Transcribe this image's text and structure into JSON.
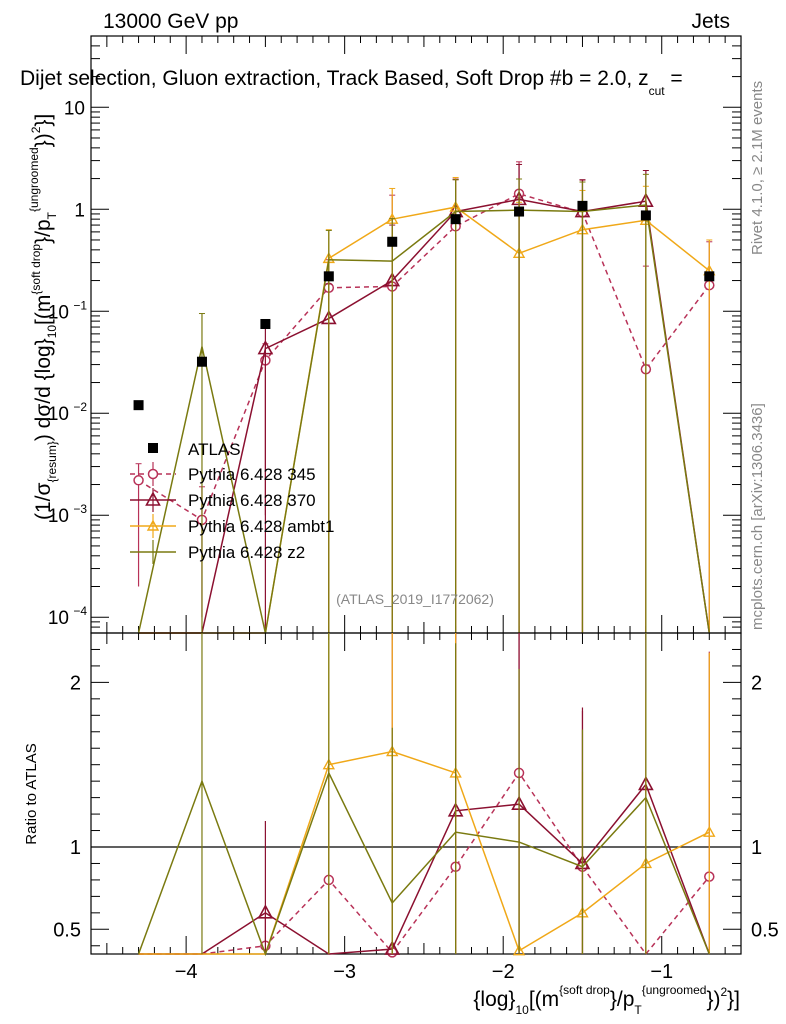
{
  "header": {
    "energy": "13000 GeV pp",
    "category": "Jets",
    "title": "Dijet selection, Gluon extraction, Track Based, Soft Drop #b = 2.0, z",
    "title_sub": "cut",
    "title_tail": " ="
  },
  "side_labels": {
    "rivet": "Rivet 4.1.0, ≥ 2.1M events",
    "mcplots": "mcplots.cern.ch [arXiv:1306.3436]"
  },
  "watermark": "(ATLAS_2019_I1772062)",
  "ylabel_main": {
    "p1": "(1/σ",
    "p1_sub": "{resum}",
    "p2": ") dσ/d {log}",
    "p2_sub": "10",
    "p3": "[(m",
    "p3_sup": "{soft drop",
    "p4": "}/p",
    "p4_sub": "T",
    "p4_sup": "{ungroomed",
    "p5": "})",
    "p5_sup": "2",
    "p6": "}]"
  },
  "ylabel_ratio": "Ratio to ATLAS",
  "xlabel": {
    "p1": "{log}",
    "p1_sub": "10",
    "p2": "[(m",
    "p2_sup": "{soft drop",
    "p3": "}/p",
    "p3_sub": "T",
    "p3_sup": "{ungroomed",
    "p4": "})",
    "p4_sup": "2",
    "p5": "}]"
  },
  "chart_data": {
    "type": "line",
    "x_range": [
      -4.6,
      -0.5
    ],
    "x_ticks": [
      "−4",
      "−3",
      "−2",
      "−1"
    ],
    "x_tick_values": [
      -4,
      -3,
      -2,
      -1
    ],
    "main": {
      "y_scale": "log",
      "ylim": [
        7e-05,
        50
      ],
      "y_ticks": [
        {
          "value": 0.0001,
          "base": "10",
          "exp": "−4"
        },
        {
          "value": 0.001,
          "base": "10",
          "exp": "−3"
        },
        {
          "value": 0.01,
          "base": "10",
          "exp": "−2"
        },
        {
          "value": 0.1,
          "base": "10",
          "exp": "−1"
        },
        {
          "value": 1,
          "base": "1",
          "exp": ""
        },
        {
          "value": 10,
          "base": "10",
          "exp": ""
        }
      ]
    },
    "ratio": {
      "ylim": [
        0.35,
        2.3
      ],
      "y_ticks": [
        "0.5",
        "1",
        "2"
      ],
      "y_tick_values": [
        0.5,
        1,
        2
      ],
      "reference": 1
    },
    "x": [
      -4.3,
      -3.9,
      -3.5,
      -3.1,
      -2.7,
      -2.3,
      -1.9,
      -1.5,
      -1.1,
      -0.7
    ],
    "data": {
      "name": "ATLAS",
      "values": [
        0.012,
        0.032,
        0.075,
        0.22,
        0.48,
        0.8,
        0.95,
        1.08,
        0.87,
        0.22
      ]
    },
    "series": [
      {
        "name": "Pythia 6.428 345",
        "color": "#b83258",
        "style": "dashed",
        "marker": "circle",
        "values": [
          0.0022,
          0.0009,
          0.033,
          0.17,
          0.175,
          0.68,
          1.42,
          0.93,
          0.027,
          0.18
        ],
        "err_hi": [
          0.001,
          0.001,
          0.015,
          0.15,
          1.2,
          1.3,
          1.5,
          1.0,
          0.25,
          0.3
        ],
        "err_lo": [
          0.002,
          0.0008,
          0.032,
          0.17,
          0.175,
          0.68,
          1.42,
          0.93,
          0.027,
          0.18
        ],
        "ratio": [
          0.18,
          0.03,
          0.4,
          0.8,
          0.36,
          0.88,
          1.45,
          0.88,
          0.03,
          0.82
        ]
      },
      {
        "name": "Pythia 6.428 370",
        "color": "#8b1030",
        "style": "solid",
        "marker": "triangle",
        "values": [
          1e-05,
          1e-05,
          0.043,
          0.085,
          0.2,
          0.95,
          1.25,
          0.95,
          1.2,
          1e-05
        ],
        "err_hi": [
          0,
          0,
          0.04,
          0.1,
          0.5,
          1.0,
          1.5,
          1.0,
          1.2,
          0
        ],
        "err_lo": [
          0,
          0,
          0.043,
          0.085,
          0.2,
          0.95,
          1.25,
          0.95,
          1.2,
          0
        ],
        "ratio": [
          0.01,
          0.01,
          0.6,
          0.28,
          0.38,
          1.22,
          1.26,
          0.9,
          1.38,
          0.01
        ]
      },
      {
        "name": "Pythia 6.428 ambt1",
        "color": "#f0a818",
        "style": "solid",
        "marker": "triangle-small",
        "values": [
          1e-05,
          1e-05,
          1e-05,
          0.33,
          0.8,
          1.05,
          0.37,
          0.63,
          0.78,
          0.25
        ],
        "err_hi": [
          0,
          0,
          0,
          0.3,
          0.8,
          1.0,
          0.8,
          0.9,
          0.9,
          0.25
        ],
        "err_lo": [
          0,
          0,
          0,
          0.33,
          0.8,
          1.05,
          0.37,
          0.63,
          0.78,
          0.25
        ],
        "ratio": [
          0.01,
          0.01,
          0.01,
          1.5,
          1.58,
          1.45,
          0.37,
          0.6,
          0.9,
          1.09
        ]
      },
      {
        "name": "Pythia 6.428 z2",
        "color": "#7a7a10",
        "style": "solid",
        "marker": "none",
        "values": [
          1e-05,
          0.045,
          1e-05,
          0.32,
          0.31,
          0.95,
          0.98,
          0.95,
          1.1,
          1e-05
        ],
        "err_hi": [
          0,
          0.05,
          0,
          0.3,
          0.5,
          1.0,
          1.0,
          0.9,
          1.1,
          0
        ],
        "err_lo": [
          0,
          0.045,
          0,
          0.32,
          0.31,
          0.95,
          0.98,
          0.95,
          1.1,
          0
        ],
        "ratio": [
          0.2,
          1.4,
          0.15,
          1.45,
          0.66,
          1.09,
          1.03,
          0.88,
          1.3,
          0.01
        ]
      }
    ]
  }
}
